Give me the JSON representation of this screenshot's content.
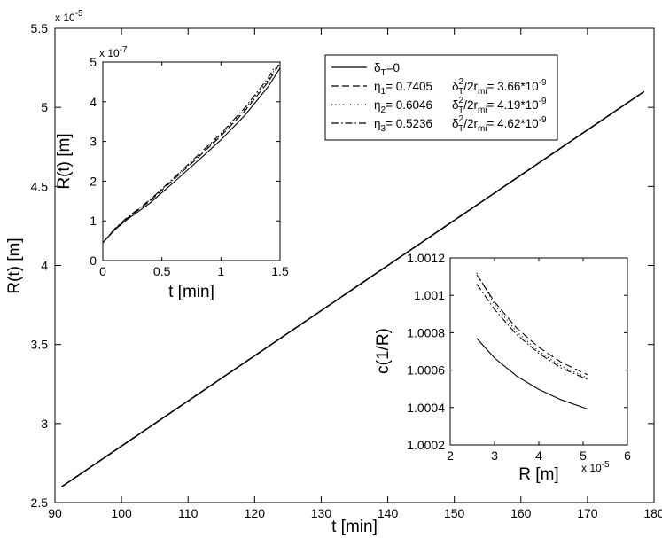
{
  "chart_data": [
    {
      "id": "main",
      "type": "line",
      "xlabel": "t [min]",
      "ylabel": "R(t) [m]",
      "xlim": [
        90,
        180
      ],
      "ylim": [
        2.5e-05,
        5.5e-05
      ],
      "xticks": [
        90,
        100,
        110,
        120,
        130,
        140,
        150,
        160,
        170,
        180
      ],
      "xtick_labels": [
        "90",
        "100",
        "110",
        "120",
        "130",
        "140",
        "150",
        "160",
        "170",
        "180"
      ],
      "yticks": [
        2.5e-05,
        3e-05,
        3.5e-05,
        4e-05,
        4.5e-05,
        5e-05,
        5.5e-05
      ],
      "ytick_labels": [
        "2.5",
        "3",
        "3.5",
        "4",
        "4.5",
        "5",
        "5.5"
      ],
      "y_exponent_label": "x 10",
      "y_exponent_power": "-5",
      "grid": false,
      "legend_position": "top-right",
      "legend": [
        {
          "style": "solid",
          "prefix": "δ",
          "prefix_sub": "T",
          "text": "=0"
        },
        {
          "style": "dashed",
          "prefix": "η",
          "prefix_sub": "1",
          "text": "= 0.7405",
          "ratio": "= 3.66*10",
          "ratio_exp": "-9"
        },
        {
          "style": "dotted",
          "prefix": "η",
          "prefix_sub": "2",
          "text": "= 0.6046",
          "ratio": "= 4.19*10",
          "ratio_exp": "-9"
        },
        {
          "style": "dashdot",
          "prefix": "η",
          "prefix_sub": "3",
          "text": "= 0.5236",
          "ratio": "= 4.62*10",
          "ratio_exp": "-9"
        }
      ],
      "series": [
        {
          "style": "solid",
          "points": [
            [
              91,
              2.6e-05
            ],
            [
              178.5,
              5.1e-05
            ]
          ]
        },
        {
          "style": "dashed",
          "points": [
            [
              91,
              2.6e-05
            ],
            [
              178.5,
              5.1e-05
            ]
          ]
        },
        {
          "style": "dotted",
          "points": [
            [
              91,
              2.6e-05
            ],
            [
              178.5,
              5.1e-05
            ]
          ]
        },
        {
          "style": "dashdot",
          "points": [
            [
              91,
              2.6e-05
            ],
            [
              178.5,
              5.1e-05
            ]
          ]
        }
      ]
    },
    {
      "id": "inset_left",
      "type": "line",
      "xlabel": "t [min]",
      "ylabel": "R(t) [m]",
      "xlim": [
        0,
        1.5
      ],
      "ylim": [
        0,
        5e-07
      ],
      "xticks": [
        0,
        0.5,
        1,
        1.5
      ],
      "xtick_labels": [
        "0",
        "0.5",
        "1",
        "1.5"
      ],
      "yticks": [
        0,
        1e-07,
        2e-07,
        3e-07,
        4e-07,
        5e-07
      ],
      "ytick_labels": [
        "0",
        "1",
        "2",
        "3",
        "4",
        "5"
      ],
      "y_exponent_label": "x 10",
      "y_exponent_power": "-7",
      "series": [
        {
          "style": "solid",
          "points": [
            [
              0,
              4.5e-08
            ],
            [
              0.1,
              7.7e-08
            ],
            [
              0.2,
              1.02e-07
            ],
            [
              0.4,
              1.45e-07
            ],
            [
              0.6,
              1.97e-07
            ],
            [
              0.8,
              2.5e-07
            ],
            [
              1.0,
              3.04e-07
            ],
            [
              1.2,
              3.65e-07
            ],
            [
              1.4,
              4.38e-07
            ],
            [
              1.5,
              4.85e-07
            ]
          ]
        },
        {
          "style": "dashed",
          "points": [
            [
              0,
              4.5e-08
            ],
            [
              0.1,
              7.9e-08
            ],
            [
              0.2,
              1.05e-07
            ],
            [
              0.4,
              1.5e-07
            ],
            [
              0.6,
              2.04e-07
            ],
            [
              0.8,
              2.58e-07
            ],
            [
              1.0,
              3.14e-07
            ],
            [
              1.2,
              3.76e-07
            ],
            [
              1.4,
              4.5e-07
            ],
            [
              1.5,
              4.97e-07
            ]
          ]
        },
        {
          "style": "dotted",
          "points": [
            [
              0,
              4.5e-08
            ],
            [
              0.1,
              7.9e-08
            ],
            [
              0.2,
              1.06e-07
            ],
            [
              0.4,
              1.52e-07
            ],
            [
              0.6,
              2.06e-07
            ],
            [
              0.8,
              2.61e-07
            ],
            [
              1.0,
              3.17e-07
            ],
            [
              1.2,
              3.8e-07
            ],
            [
              1.4,
              4.55e-07
            ],
            [
              1.5,
              5e-07
            ]
          ]
        },
        {
          "style": "dashdot",
          "points": [
            [
              0,
              4.5e-08
            ],
            [
              0.1,
              8e-08
            ],
            [
              0.2,
              1.07e-07
            ],
            [
              0.4,
              1.53e-07
            ],
            [
              0.6,
              2.08e-07
            ],
            [
              0.8,
              2.64e-07
            ],
            [
              1.0,
              3.2e-07
            ],
            [
              1.2,
              3.84e-07
            ],
            [
              1.4,
              4.6e-07
            ],
            [
              1.45,
              4.85e-07
            ]
          ]
        }
      ]
    },
    {
      "id": "inset_right",
      "type": "line",
      "xlabel": "R [m]",
      "ylabel": "c(1/R)",
      "xlim": [
        2e-05,
        6e-05
      ],
      "ylim": [
        1.0002,
        1.0012
      ],
      "xticks": [
        2e-05,
        3e-05,
        4e-05,
        5e-05,
        6e-05
      ],
      "xtick_labels": [
        "2",
        "3",
        "4",
        "5",
        "6"
      ],
      "yticks": [
        1.0002,
        1.0004,
        1.0006,
        1.0008,
        1.001,
        1.0012
      ],
      "ytick_labels": [
        "1.0002",
        "1.0004",
        "1.0006",
        "1.0008",
        "1.001",
        "1.0012"
      ],
      "x_exponent_label": "x 10",
      "x_exponent_power": "-5",
      "series": [
        {
          "style": "solid",
          "points": [
            [
              2.6e-05,
              1.00077
            ],
            [
              3e-05,
              1.000665
            ],
            [
              3.5e-05,
              1.000568
            ],
            [
              4e-05,
              1.000497
            ],
            [
              4.5e-05,
              1.000442
            ],
            [
              5.1e-05,
              1.000392
            ]
          ]
        },
        {
          "style": "dashed",
          "points": [
            [
              2.6e-05,
              1.00111
            ],
            [
              3e-05,
              1.000965
            ],
            [
              3.5e-05,
              1.000825
            ],
            [
              4e-05,
              1.000722
            ],
            [
              4.5e-05,
              1.000643
            ],
            [
              5.1e-05,
              1.000575
            ]
          ]
        },
        {
          "style": "dotted",
          "points": [
            [
              2.6e-05,
              1.00112
            ],
            [
              3e-05,
              1.00095
            ],
            [
              3.5e-05,
              1.000805
            ],
            [
              4e-05,
              1.0007
            ],
            [
              4.5e-05,
              1.000622
            ],
            [
              5.1e-05,
              1.000558
            ]
          ]
        },
        {
          "style": "dashdot",
          "points": [
            [
              2.6e-05,
              1.00106
            ],
            [
              3e-05,
              1.000925
            ],
            [
              3.5e-05,
              1.00079
            ],
            [
              4e-05,
              1.00069
            ],
            [
              4.5e-05,
              1.000612
            ],
            [
              5.1e-05,
              1.00055
            ]
          ]
        }
      ]
    }
  ],
  "legend_extra": {
    "ratio_prefix": "δ",
    "ratio_sup": "2",
    "ratio_sub": "T",
    "ratio_mid": "/2r",
    "ratio_mid_sub": "mi"
  }
}
